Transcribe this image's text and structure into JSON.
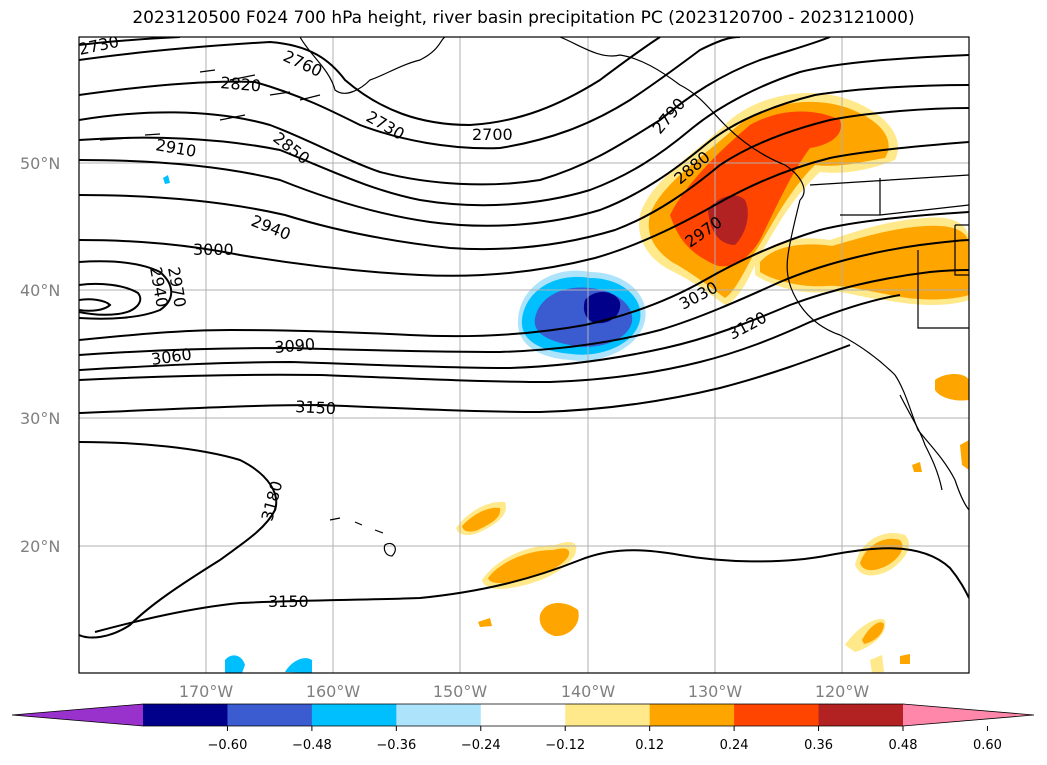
{
  "title": "2023120500 F024 700 hPa height, river basin precipitation PC (2023120700 - 2023121000)",
  "lat_labels": [
    "50°N",
    "40°N",
    "30°N",
    "20°N"
  ],
  "lon_labels": [
    "170°W",
    "160°W",
    "150°W",
    "140°W",
    "130°W",
    "120°W"
  ],
  "contour_labels": [
    "2730",
    "2760",
    "2820",
    "2910",
    "2730",
    "2850",
    "2700",
    "2790",
    "2880",
    "2940",
    "3000",
    "2970",
    "2940",
    "2970",
    "3060",
    "3090",
    "3030",
    "3120",
    "3150",
    "3180",
    "3150"
  ],
  "colorbar": {
    "ticks": [
      "−0.60",
      "−0.48",
      "−0.36",
      "−0.24",
      "−0.12",
      "0.12",
      "0.24",
      "0.36",
      "0.48",
      "0.60"
    ],
    "colors": [
      "#9932cc",
      "#00008b",
      "#3b5bd0",
      "#00bfff",
      "#aee4fb",
      "#ffffff",
      "#ffe98a",
      "#ffa500",
      "#ff4500",
      "#b22222",
      "#ff88aa"
    ]
  },
  "map_colors": {
    "land_outline": "#000000",
    "grid": "#b0b0b0",
    "orange": "#ffa500",
    "red": "#ff4500",
    "darkred": "#b22222",
    "yellow": "#ffe98a",
    "lightblue": "#00bfff",
    "blue": "#3b5bd0",
    "navy": "#00008b"
  }
}
